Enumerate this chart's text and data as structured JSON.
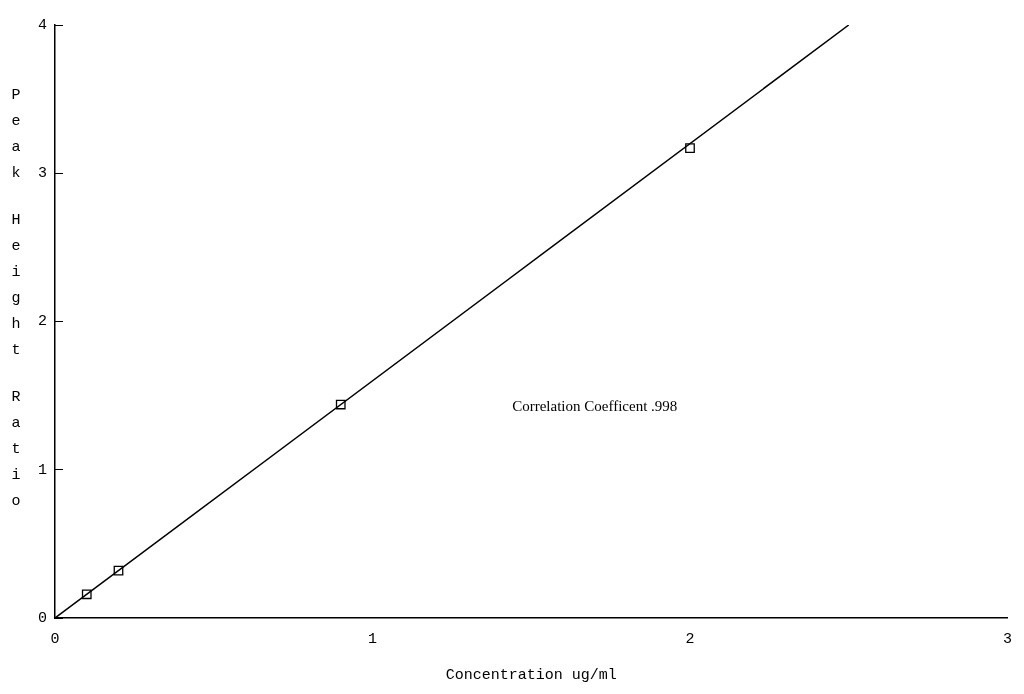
{
  "chart_data": {
    "type": "scatter",
    "xlabel": "Concentration ug/ml",
    "ylabel": "Peak Height Ratio",
    "xlim": [
      0,
      3
    ],
    "xticks": [
      0,
      1,
      2,
      3
    ],
    "ylim": [
      0,
      4
    ],
    "yticks": [
      0,
      1,
      2,
      3,
      4
    ],
    "grid": false,
    "legend": false,
    "marker": "square",
    "series": [
      {
        "color": "#000000",
        "x": [
          0.1,
          0.2,
          0.9,
          2.0
        ],
        "values": [
          0.16,
          0.32,
          1.44,
          3.17
        ]
      },
      {
        "type": "line",
        "color": "#000000",
        "marker": "none",
        "line_style": "solid",
        "x": [
          0,
          2.5
        ],
        "values": [
          0,
          4.0
        ]
      }
    ],
    "annotations": [
      "Correlation Coefficent .998"
    ]
  }
}
